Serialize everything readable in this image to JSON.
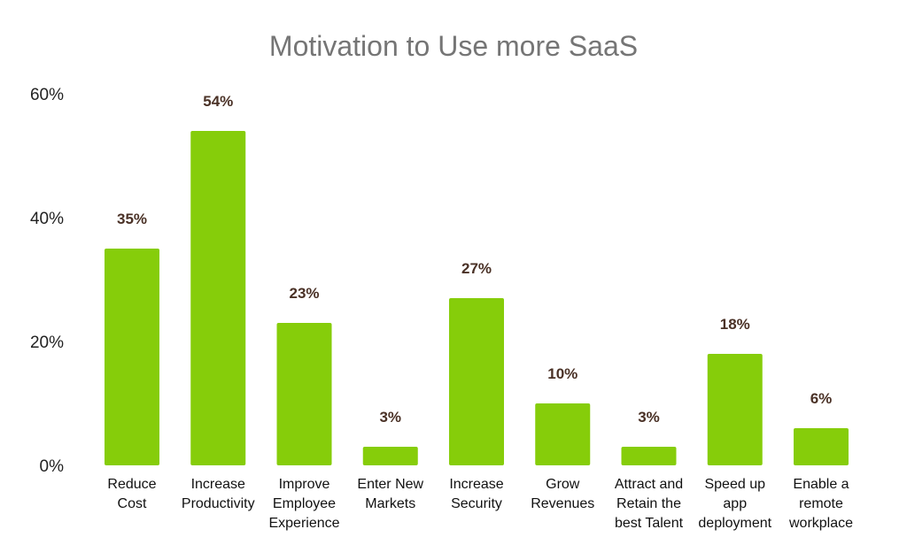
{
  "chart_data": {
    "type": "bar",
    "title": "Motivation to Use more SaaS",
    "xlabel": "",
    "ylabel": "",
    "ylim": [
      0,
      60
    ],
    "yticks": [
      "0%",
      "20%",
      "40%",
      "60%"
    ],
    "grid": false,
    "legend": "none",
    "bar_color": "#86CD0A",
    "label_color": "#4A3126",
    "categories": [
      [
        "Reduce",
        "Cost"
      ],
      [
        "Increase",
        "Productivity"
      ],
      [
        "Improve",
        "Employee",
        "Experience"
      ],
      [
        "Enter New",
        "Markets"
      ],
      [
        "Increase",
        "Security"
      ],
      [
        "Grow",
        "Revenues"
      ],
      [
        "Attract and",
        "Retain the",
        "best Talent"
      ],
      [
        "Speed up",
        "app",
        "deployment"
      ],
      [
        "Enable a",
        "remote",
        "workplace"
      ]
    ],
    "values": [
      35,
      54,
      23,
      3,
      27,
      10,
      3,
      18,
      6
    ],
    "data_labels": [
      "35%",
      "54%",
      "23%",
      "3%",
      "27%",
      "10%",
      "3%",
      "18%",
      "6%"
    ]
  }
}
